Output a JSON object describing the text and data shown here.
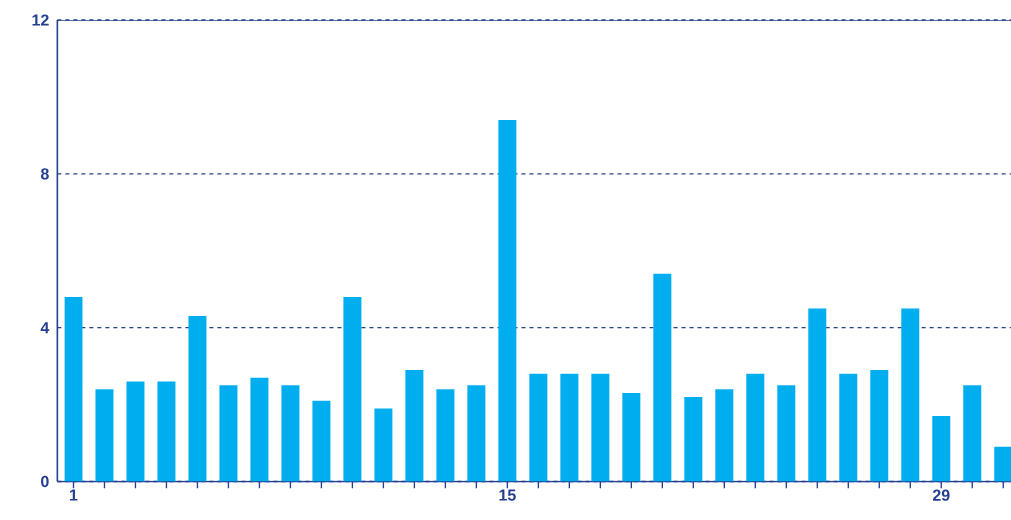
{
  "chart_data": {
    "type": "bar",
    "categories": [
      "1",
      null,
      null,
      null,
      null,
      null,
      null,
      null,
      null,
      null,
      null,
      null,
      null,
      null,
      "15",
      null,
      null,
      null,
      null,
      null,
      null,
      null,
      null,
      null,
      null,
      null,
      null,
      null,
      "29",
      null,
      null
    ],
    "values": [
      4.8,
      2.4,
      2.6,
      2.6,
      4.3,
      2.5,
      2.7,
      2.5,
      2.1,
      4.8,
      1.9,
      2.9,
      2.4,
      2.5,
      9.4,
      2.8,
      2.8,
      2.8,
      2.3,
      5.4,
      2.2,
      2.4,
      2.8,
      2.5,
      4.5,
      2.8,
      2.9,
      4.5,
      1.7,
      2.5,
      0.9
    ],
    "color": "#00aeef",
    "ylim": [
      0,
      12
    ],
    "yticks": [
      0,
      4,
      8,
      12
    ],
    "grid": "y"
  }
}
